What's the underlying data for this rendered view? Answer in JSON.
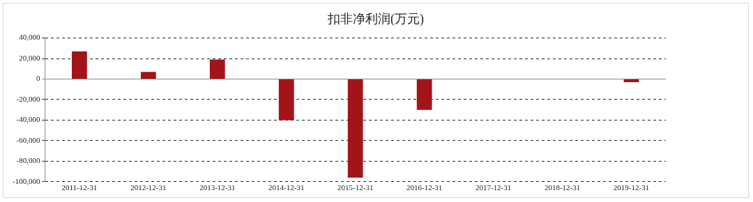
{
  "chart_data": {
    "type": "bar",
    "title": "扣非净利润(万元)",
    "categories": [
      "2011-12-31",
      "2012-12-31",
      "2013-12-31",
      "2014-12-31",
      "2015-12-31",
      "2016-12-31",
      "2017-12-31",
      "2018-12-31",
      "2019-12-31"
    ],
    "values": [
      27000,
      7000,
      19000,
      -40000,
      -96000,
      -30000,
      0,
      0,
      -3000
    ],
    "color": "#a31419",
    "ylim": [
      -100000,
      40000
    ],
    "yticks": [
      {
        "value": -100000,
        "label": "-100,000"
      },
      {
        "value": -80000,
        "label": "-80,000"
      },
      {
        "value": -60000,
        "label": "-60,000"
      },
      {
        "value": -40000,
        "label": "-40,000"
      },
      {
        "value": -20000,
        "label": "-20,000"
      },
      0,
      {
        "value": 20000,
        "label": "20,000"
      },
      {
        "value": 40000,
        "label": "40,000"
      }
    ],
    "grid": "y",
    "legend": false
  }
}
